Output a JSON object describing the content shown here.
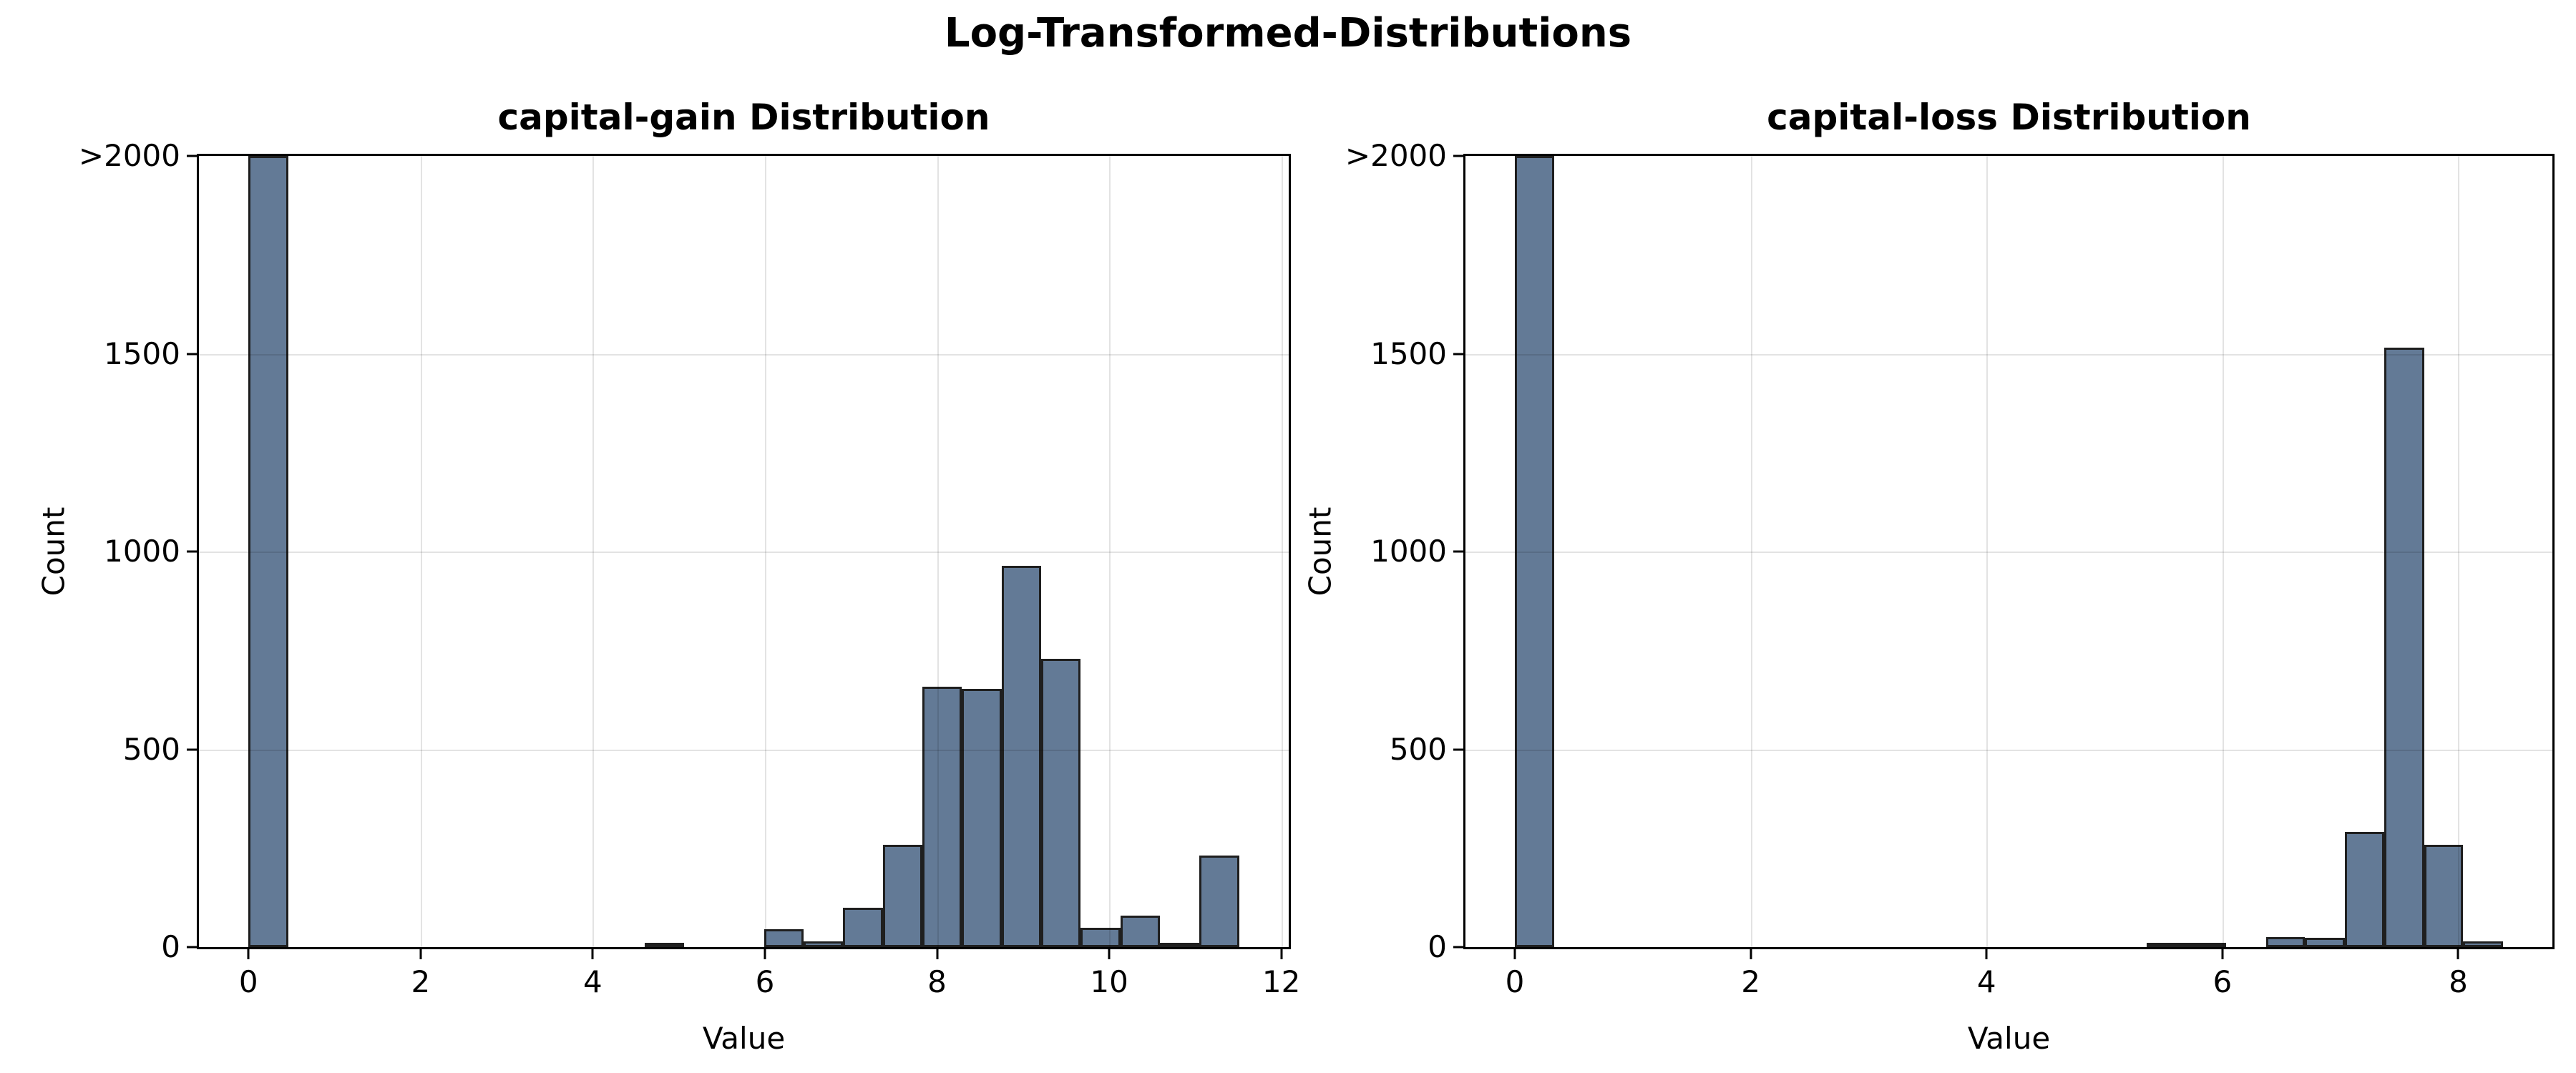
{
  "figure": {
    "suptitle": "Log-Transformed-Distributions",
    "background": "#ffffff",
    "bar_fill": "#637A96",
    "bar_edge": "#1f1f1f",
    "grid_color": "rgba(0,0,0,0.11)"
  },
  "chart_data": [
    {
      "type": "bar",
      "title": "capital-gain Distribution",
      "xlabel": "Value",
      "ylabel": "Count",
      "xlim": [
        -0.576,
        12.086
      ],
      "ylim": [
        0,
        2000
      ],
      "xticks": [
        0,
        2,
        4,
        6,
        8,
        10,
        12
      ],
      "yticks": [
        0,
        500,
        1000,
        1500,
        2000
      ],
      "ytick_labels": [
        "0",
        "500",
        "1000",
        "1500",
        ">2000"
      ],
      "grid": true,
      "note": "Histogram of log1p(capital-gain); first bin exceeds axis and is clipped at 2000 (>2000).",
      "bars": [
        {
          "x0": 0.0,
          "x1": 0.46,
          "count": 2000,
          "clipped": true
        },
        {
          "x0": 4.6,
          "x1": 5.06,
          "count": 9
        },
        {
          "x0": 5.99,
          "x1": 6.45,
          "count": 45
        },
        {
          "x0": 6.45,
          "x1": 6.91,
          "count": 15
        },
        {
          "x0": 6.91,
          "x1": 7.37,
          "count": 99
        },
        {
          "x0": 7.37,
          "x1": 7.83,
          "count": 258
        },
        {
          "x0": 7.83,
          "x1": 8.29,
          "count": 659
        },
        {
          "x0": 8.29,
          "x1": 8.75,
          "count": 652
        },
        {
          "x0": 8.75,
          "x1": 9.21,
          "count": 963
        },
        {
          "x0": 9.21,
          "x1": 9.67,
          "count": 729
        },
        {
          "x0": 9.67,
          "x1": 10.13,
          "count": 48
        },
        {
          "x0": 10.13,
          "x1": 10.59,
          "count": 80
        },
        {
          "x0": 10.59,
          "x1": 11.05,
          "count": 3
        },
        {
          "x0": 11.05,
          "x1": 11.51,
          "count": 232
        }
      ]
    },
    {
      "type": "bar",
      "title": "capital-loss Distribution",
      "xlabel": "Value",
      "ylabel": "Count",
      "xlim": [
        -0.419,
        8.798
      ],
      "ylim": [
        0,
        2000
      ],
      "xticks": [
        0,
        2,
        4,
        6,
        8
      ],
      "yticks": [
        0,
        500,
        1000,
        1500,
        2000
      ],
      "ytick_labels": [
        "0",
        "500",
        "1000",
        "1500",
        ">2000"
      ],
      "grid": true,
      "note": "Histogram of log1p(capital-loss); first bin exceeds axis and is clipped at 2000 (>2000).",
      "bars": [
        {
          "x0": 0.0,
          "x1": 0.335,
          "count": 2000,
          "clipped": true
        },
        {
          "x0": 5.36,
          "x1": 5.7,
          "count": 7
        },
        {
          "x0": 5.7,
          "x1": 6.03,
          "count": 8
        },
        {
          "x0": 6.37,
          "x1": 6.7,
          "count": 26
        },
        {
          "x0": 6.7,
          "x1": 7.04,
          "count": 24
        },
        {
          "x0": 7.04,
          "x1": 7.37,
          "count": 292
        },
        {
          "x0": 7.37,
          "x1": 7.71,
          "count": 1516
        },
        {
          "x0": 7.71,
          "x1": 8.04,
          "count": 258
        },
        {
          "x0": 8.04,
          "x1": 8.38,
          "count": 15
        }
      ]
    }
  ]
}
